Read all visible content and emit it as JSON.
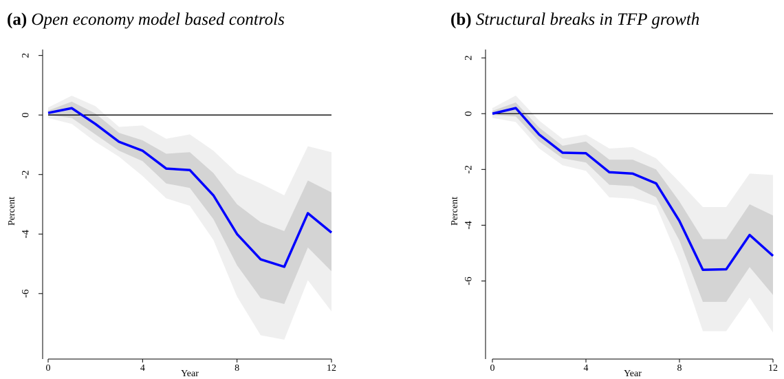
{
  "chart_data": [
    {
      "type": "line",
      "label": "(a)",
      "title": "Open economy model based controls",
      "xlabel": "Year",
      "ylabel": "Percent",
      "x": [
        0,
        1,
        2,
        3,
        4,
        5,
        6,
        7,
        8,
        9,
        10,
        11,
        12
      ],
      "xlim": [
        0,
        12
      ],
      "xticks": [
        0,
        4,
        8,
        12
      ],
      "ylim": [
        -8.2,
        2.2
      ],
      "yticks": [
        -6,
        -4,
        -2,
        0,
        2
      ],
      "refline": 0,
      "bands": [
        {
          "color": "#efefef",
          "lower": [
            -0.1,
            -0.3,
            -0.9,
            -1.4,
            -2.05,
            -2.8,
            -3.05,
            -4.2,
            -6.1,
            -7.4,
            -7.55,
            -5.55,
            -6.6
          ],
          "upper": [
            0.25,
            0.65,
            0.3,
            -0.4,
            -0.35,
            -0.8,
            -0.65,
            -1.2,
            -1.95,
            -2.3,
            -2.7,
            -1.05,
            -1.25
          ]
        },
        {
          "color": "#d4d4d4",
          "lower": [
            0.0,
            -0.1,
            -0.65,
            -1.2,
            -1.55,
            -2.3,
            -2.45,
            -3.5,
            -5.05,
            -6.15,
            -6.35,
            -4.45,
            -5.25
          ],
          "upper": [
            0.15,
            0.45,
            0.05,
            -0.6,
            -0.85,
            -1.3,
            -1.25,
            -1.95,
            -3.0,
            -3.6,
            -3.9,
            -2.2,
            -2.6
          ]
        }
      ],
      "series": [
        {
          "color": "#0000ff",
          "values": [
            0.07,
            0.23,
            -0.3,
            -0.9,
            -1.2,
            -1.8,
            -1.85,
            -2.7,
            -4.0,
            -4.85,
            -5.1,
            -3.3,
            -3.95
          ]
        }
      ]
    },
    {
      "type": "line",
      "label": "(b)",
      "title": "Structural breaks in TFP growth",
      "xlabel": "Year",
      "ylabel": "Percent",
      "x": [
        0,
        1,
        2,
        3,
        4,
        5,
        6,
        7,
        8,
        9,
        10,
        11,
        12
      ],
      "xlim": [
        0,
        12
      ],
      "xticks": [
        0,
        4,
        8,
        12
      ],
      "ylim": [
        -8.8,
        2.3
      ],
      "yticks": [
        -6,
        -4,
        -2,
        0,
        2
      ],
      "refline": 0,
      "bands": [
        {
          "color": "#efefef",
          "lower": [
            -0.15,
            -0.3,
            -1.25,
            -1.85,
            -2.05,
            -3.0,
            -3.05,
            -3.3,
            -5.3,
            -7.8,
            -7.8,
            -6.6,
            -7.85
          ],
          "upper": [
            0.2,
            0.65,
            -0.25,
            -0.9,
            -0.75,
            -1.25,
            -1.2,
            -1.6,
            -2.45,
            -3.35,
            -3.35,
            -2.15,
            -2.2
          ]
        },
        {
          "color": "#d4d4d4",
          "lower": [
            -0.05,
            -0.1,
            -1.0,
            -1.6,
            -1.75,
            -2.55,
            -2.6,
            -3.0,
            -4.55,
            -6.75,
            -6.75,
            -5.5,
            -6.5
          ],
          "upper": [
            0.1,
            0.4,
            -0.5,
            -1.15,
            -1.0,
            -1.65,
            -1.65,
            -2.0,
            -3.15,
            -4.5,
            -4.5,
            -3.25,
            -3.65
          ]
        }
      ],
      "series": [
        {
          "color": "#0000ff",
          "values": [
            0.0,
            0.2,
            -0.75,
            -1.4,
            -1.42,
            -2.1,
            -2.15,
            -2.5,
            -3.85,
            -5.6,
            -5.58,
            -4.35,
            -5.1
          ]
        }
      ]
    }
  ]
}
